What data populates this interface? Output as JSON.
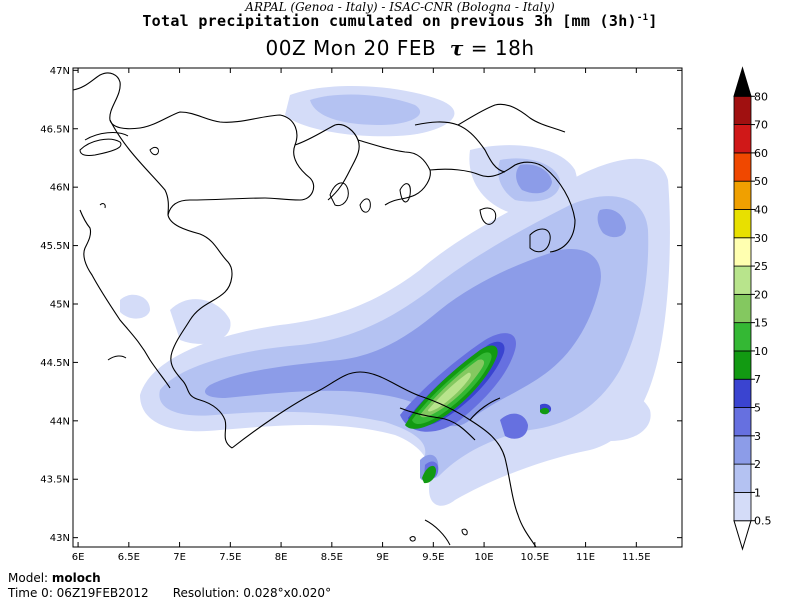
{
  "header": {
    "credit": "ARPAL (Genoa - Italy)  -  ISAC-CNR (Bologna - Italy)",
    "title_main": "Total precipitation cumulated on previous 3h [mm (3h)",
    "title_sup": "-1",
    "title_end": "]",
    "subtitle_prefix": "00Z Mon 20 FEB",
    "tau_symbol": "τ",
    "subtitle_suffix": "= 18h"
  },
  "axes": {
    "lon_labels": [
      "6E",
      "6.5E",
      "7E",
      "7.5E",
      "8E",
      "8.5E",
      "9E",
      "9.5E",
      "10E",
      "10.5E",
      "11E",
      "11.5E"
    ],
    "lon_values": [
      6,
      6.5,
      7,
      7.5,
      8,
      8.5,
      9,
      9.5,
      10,
      10.5,
      11,
      11.5
    ],
    "lat_labels": [
      "47N",
      "46.5N",
      "46N",
      "45.5N",
      "45N",
      "44.5N",
      "44N",
      "43.5N",
      "43N"
    ],
    "lat_values": [
      47,
      46.5,
      46,
      45.5,
      45,
      44.5,
      44,
      43.5,
      43
    ]
  },
  "colorbar": {
    "levels": [
      "0.5",
      "1",
      "2",
      "3",
      "5",
      "7",
      "10",
      "15",
      "20",
      "25",
      "30",
      "40",
      "50",
      "60",
      "70",
      "80"
    ],
    "colors": [
      "#ffffff",
      "#d4dcf8",
      "#b4c2f2",
      "#8c9ce8",
      "#6670e0",
      "#3a44d0",
      "#129a12",
      "#34b834",
      "#84c860",
      "#b8e48c",
      "#ffffb0",
      "#e8e000",
      "#f0a000",
      "#f04800",
      "#d01818",
      "#a01010",
      "#601010",
      "#000000"
    ]
  },
  "footer": {
    "model_label": "Model:",
    "model_name": "moloch",
    "time_label": "Time 0: 06Z19FEB2012",
    "resolution_label": "Resolution: 0.028°x0.020°"
  }
}
